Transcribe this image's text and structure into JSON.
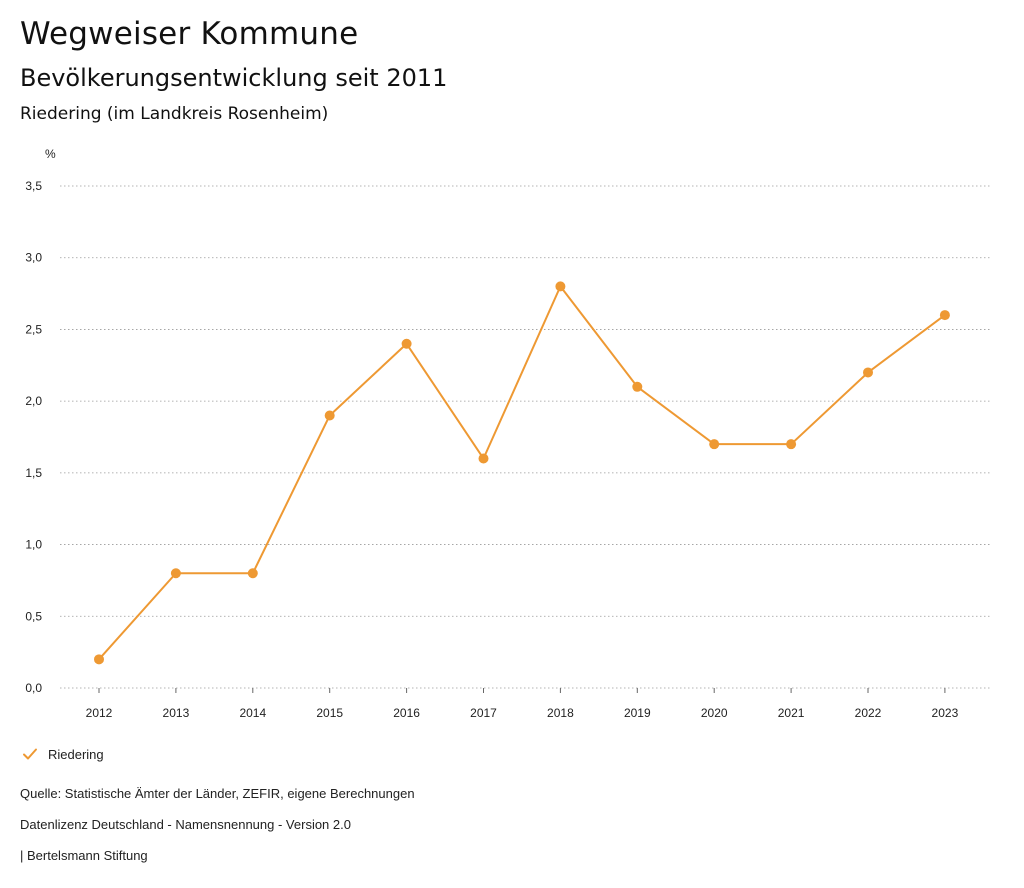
{
  "header": {
    "title": "Wegweiser Kommune",
    "subtitle": "Bevölkerungsentwicklung seit 2011",
    "region": "Riedering (im Landkreis Rosenheim)"
  },
  "chart_data": {
    "type": "line",
    "ylabel": "%",
    "xlabel": "",
    "ylim": [
      0,
      3.5
    ],
    "yticks": [
      "0,0",
      "0,5",
      "1,0",
      "1,5",
      "2,0",
      "2,5",
      "3,0",
      "3,5"
    ],
    "ytick_values": [
      0,
      0.5,
      1.0,
      1.5,
      2.0,
      2.5,
      3.0,
      3.5
    ],
    "categories": [
      "2012",
      "2013",
      "2014",
      "2015",
      "2016",
      "2017",
      "2018",
      "2019",
      "2020",
      "2021",
      "2022",
      "2023"
    ],
    "series": [
      {
        "name": "Riedering",
        "color": "#ee9933",
        "values": [
          0.2,
          0.8,
          0.8,
          1.9,
          2.4,
          1.6,
          2.8,
          2.1,
          1.7,
          1.7,
          2.2,
          2.6
        ]
      }
    ],
    "grid": true,
    "legend": "bottom-left"
  },
  "legend": {
    "label": "Riedering",
    "icon": "check-icon"
  },
  "footer": {
    "source": "Quelle: Statistische Ämter der Länder, ZEFIR, eigene Berechnungen",
    "license": "Datenlizenz Deutschland - Namensnennung - Version 2.0",
    "publisher": "| Bertelsmann Stiftung"
  }
}
